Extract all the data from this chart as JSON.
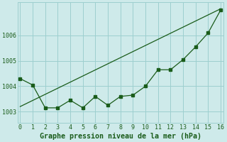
{
  "title": "Graphe pression niveau de la mer (hPa)",
  "bg_color": "#ceeaea",
  "grid_color": "#9dcfcf",
  "line_color": "#1a5c1a",
  "xlim": [
    -0.2,
    16.2
  ],
  "ylim": [
    1002.55,
    1007.3
  ],
  "xticks": [
    0,
    1,
    2,
    3,
    4,
    5,
    6,
    7,
    8,
    9,
    10,
    11,
    12,
    13,
    14,
    15,
    16
  ],
  "yticks": [
    1003,
    1004,
    1005,
    1006
  ],
  "trend_x": [
    0,
    16
  ],
  "trend_y": [
    1003.2,
    1007.05
  ],
  "jagged_x": [
    0,
    1,
    2,
    3,
    4,
    5,
    6,
    7,
    8,
    9,
    10,
    11,
    12,
    13,
    14,
    15,
    16
  ],
  "jagged_y": [
    1004.3,
    1004.05,
    1003.15,
    1003.15,
    1003.45,
    1003.15,
    1003.6,
    1003.25,
    1003.6,
    1003.65,
    1004.0,
    1004.65,
    1004.65,
    1005.05,
    1005.55,
    1006.1,
    1007.0
  ],
  "tick_fontsize": 6.0,
  "title_fontsize": 7.2
}
